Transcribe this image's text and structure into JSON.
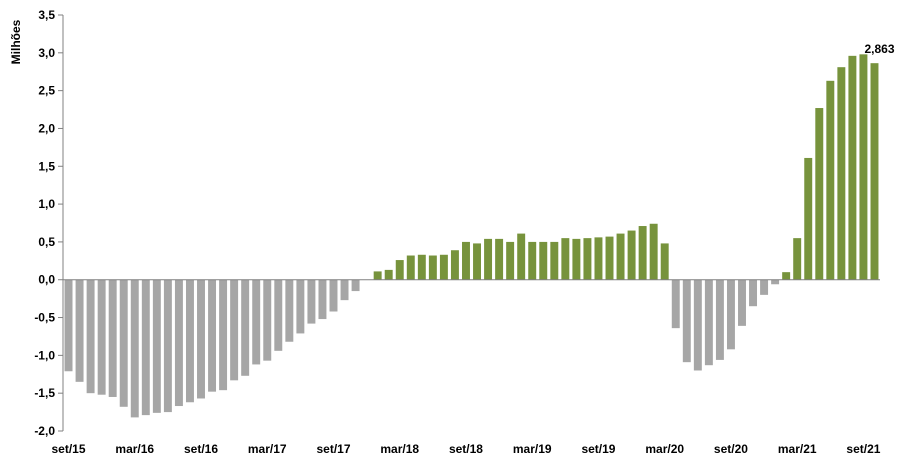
{
  "chart_data": {
    "type": "bar",
    "title": "",
    "xlabel": "",
    "ylabel": "Milhões",
    "ylim": [
      -2.0,
      3.5
    ],
    "yticks": [
      -2.0,
      -1.5,
      -1.0,
      -0.5,
      0.0,
      0.5,
      1.0,
      1.5,
      2.0,
      2.5,
      3.0,
      3.5
    ],
    "ytick_labels": [
      "-2,0",
      "-1,5",
      "-1,0",
      "-0,5",
      "0,0",
      "0,5",
      "1,0",
      "1,5",
      "2,0",
      "2,5",
      "3,0",
      "3,5"
    ],
    "x_tick_labels": [
      {
        "label": "set/15",
        "index": 0
      },
      {
        "label": "mar/16",
        "index": 6
      },
      {
        "label": "set/16",
        "index": 12
      },
      {
        "label": "mar/17",
        "index": 18
      },
      {
        "label": "set/17",
        "index": 24
      },
      {
        "label": "mar/18",
        "index": 30
      },
      {
        "label": "set/18",
        "index": 36
      },
      {
        "label": "mar/19",
        "index": 42
      },
      {
        "label": "set/19",
        "index": 48
      },
      {
        "label": "mar/20",
        "index": 54
      },
      {
        "label": "set/20",
        "index": 60
      },
      {
        "label": "mar/21",
        "index": 66
      },
      {
        "label": "set/21",
        "index": 72
      }
    ],
    "grid": false,
    "colors": {
      "negative": "#a6a6a6",
      "positive": "#77933c"
    },
    "values": [
      -1.21,
      -1.35,
      -1.5,
      -1.52,
      -1.55,
      -1.68,
      -1.82,
      -1.79,
      -1.76,
      -1.75,
      -1.67,
      -1.62,
      -1.57,
      -1.48,
      -1.46,
      -1.33,
      -1.27,
      -1.12,
      -1.07,
      -0.94,
      -0.82,
      -0.71,
      -0.58,
      -0.52,
      -0.42,
      -0.27,
      -0.15,
      null,
      0.11,
      0.13,
      0.26,
      0.32,
      0.33,
      0.32,
      0.33,
      0.39,
      0.5,
      0.48,
      0.54,
      0.54,
      0.5,
      0.61,
      0.5,
      0.5,
      0.5,
      0.55,
      0.54,
      0.55,
      0.56,
      0.57,
      0.61,
      0.65,
      0.71,
      0.74,
      0.48,
      -0.64,
      -1.09,
      -1.2,
      -1.13,
      -1.06,
      -0.92,
      -0.61,
      -0.35,
      -0.2,
      -0.06,
      0.1,
      0.55,
      1.61,
      2.27,
      2.63,
      2.81,
      2.96,
      2.98,
      2.863
    ],
    "last_value_label": "2,863"
  }
}
